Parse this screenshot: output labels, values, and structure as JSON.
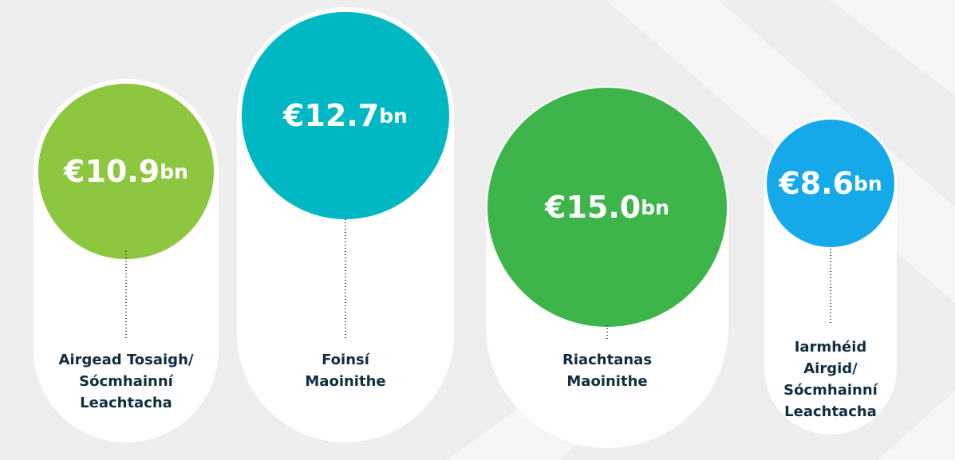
{
  "items": [
    {
      "amount": "€10.9",
      "unit": "bn",
      "label": [
        "Airgead Tosaigh/",
        "Sócmhainní",
        "Leachtacha"
      ]
    },
    {
      "amount": "€12.7",
      "unit": "bn",
      "label": [
        "Foinsí",
        "Maoinithe"
      ]
    },
    {
      "amount": "€15.0",
      "unit": "bn",
      "label": [
        "Riachtanas",
        "Maoinithe"
      ]
    },
    {
      "amount": "€8.6",
      "unit": "bn",
      "label": [
        "Iarmhéid",
        "Airgid/",
        "Sócmhainní",
        "Leachtacha"
      ]
    }
  ]
}
